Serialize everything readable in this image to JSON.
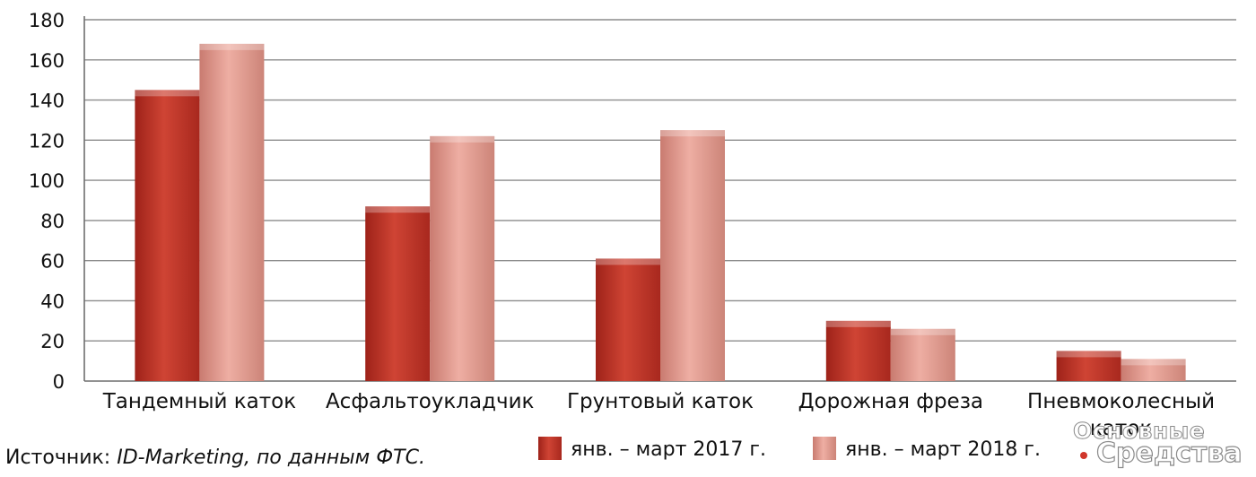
{
  "chart_data": {
    "type": "bar",
    "categories": [
      "Тандемный каток",
      "Асфальтоукладчик",
      "Грунтовый каток",
      "Дорожная фреза",
      "Пневмоколесный каток"
    ],
    "series": [
      {
        "name": "янв. – март 2017 г.",
        "color": "#c8392b",
        "values": [
          145,
          87,
          61,
          30,
          15
        ]
      },
      {
        "name": "янв. – март 2018 г.",
        "color": "#e39a8e",
        "values": [
          168,
          122,
          125,
          26,
          11
        ]
      }
    ],
    "ylim": [
      0,
      180
    ],
    "yticks": [
      0,
      20,
      40,
      60,
      80,
      100,
      120,
      140,
      160,
      180
    ],
    "grid": true,
    "legend_position": "bottom"
  },
  "source": {
    "prefix": "Источник: ",
    "text": "ID-Marketing, по данным ФТС."
  },
  "logo": {
    "line1": "Основные",
    "line2": "Средства"
  }
}
